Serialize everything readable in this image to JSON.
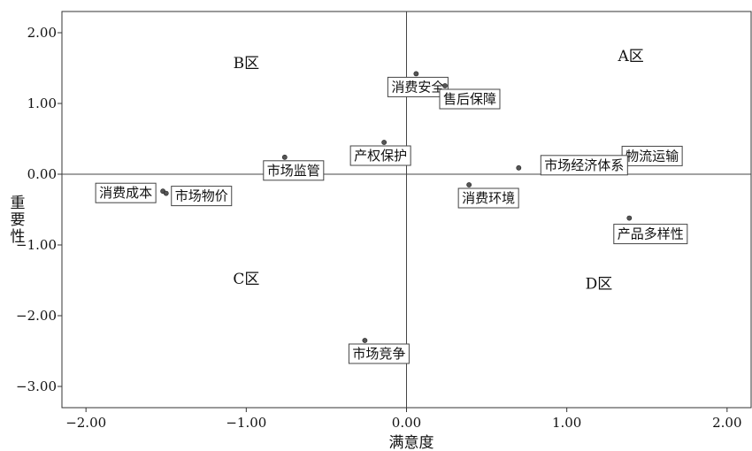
{
  "chart_data": {
    "type": "scatter",
    "xlabel": "满意度",
    "ylabel": "重要性",
    "xlim": [
      -2.15,
      2.15
    ],
    "ylim": [
      -3.3,
      2.3
    ],
    "x_ticks": [
      "−2.00",
      "−1.00",
      "0.00",
      "1.00",
      "2.00"
    ],
    "x_tick_values": [
      -2,
      -1,
      0,
      1,
      2
    ],
    "y_ticks": [
      "2.00",
      "1.00",
      "0.00",
      "−1.00",
      "−2.00",
      "−3.00"
    ],
    "y_tick_values": [
      2,
      1,
      0,
      -1,
      -2,
      -3
    ],
    "grid": false,
    "reference_lines": {
      "x": 0,
      "y": 0
    },
    "quadrants": [
      {
        "label": "A区",
        "x": 1.4,
        "y": 1.6
      },
      {
        "label": "B区",
        "x": -1.0,
        "y": 1.5
      },
      {
        "label": "C区",
        "x": -1.0,
        "y": -1.55
      },
      {
        "label": "D区",
        "x": 1.2,
        "y": -1.62
      }
    ],
    "points": [
      {
        "label": "消费安全",
        "x": 0.06,
        "y": 1.42
      },
      {
        "label": "售后保障",
        "x": 0.24,
        "y": 1.25
      },
      {
        "label": "产权保护",
        "x": -0.14,
        "y": 0.45
      },
      {
        "label": "市场监管",
        "x": -0.76,
        "y": 0.24
      },
      {
        "label": "物流运输",
        "x": 1.4,
        "y": 0.32
      },
      {
        "label": "市场经济体系",
        "x": 0.7,
        "y": 0.09
      },
      {
        "label": "消费环境",
        "x": 0.39,
        "y": -0.15
      },
      {
        "label": "消费成本",
        "x": -1.52,
        "y": -0.24
      },
      {
        "label": "市场物价",
        "x": -1.5,
        "y": -0.27
      },
      {
        "label": "产品多样性",
        "x": 1.39,
        "y": -0.62
      },
      {
        "label": "市场竞争",
        "x": -0.26,
        "y": -2.35
      }
    ]
  }
}
